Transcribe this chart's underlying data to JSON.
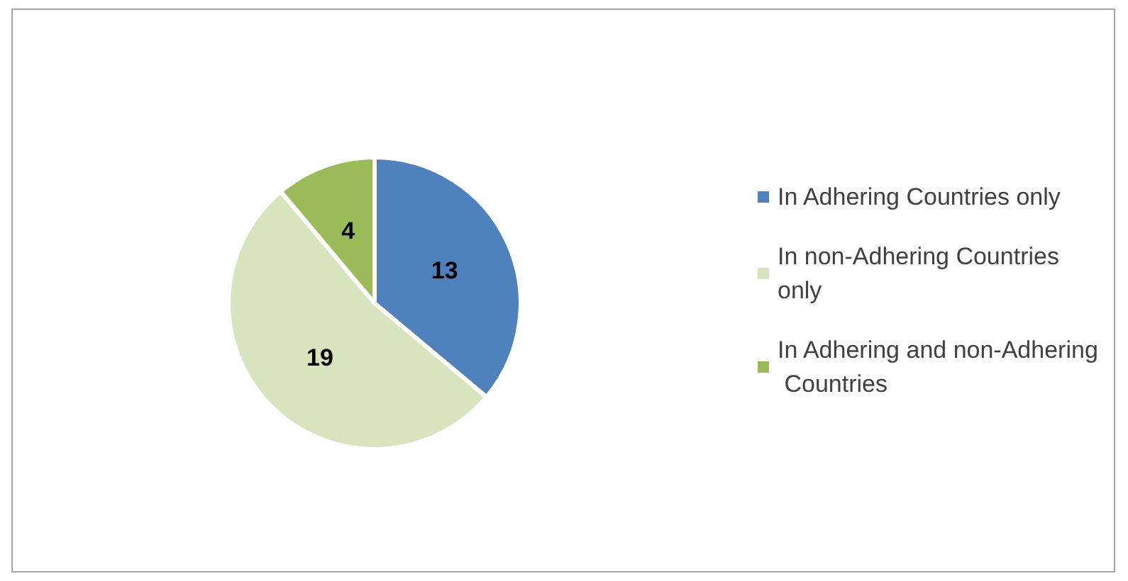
{
  "chart_data": {
    "type": "pie",
    "categories": [
      "In Adhering Countries only",
      "In non-Adhering Countries only",
      "In Adhering and non-Adhering Countries"
    ],
    "values": [
      13,
      19,
      4
    ],
    "colors": [
      "#4f81bd",
      "#d7e4bd",
      "#9bbb59"
    ],
    "data_labels": true,
    "legend": "right"
  }
}
